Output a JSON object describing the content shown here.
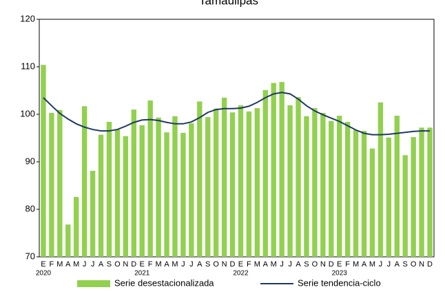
{
  "chart_data": {
    "type": "bar-line",
    "title": "Tamaulipas",
    "categories": [
      "E",
      "F",
      "M",
      "A",
      "M",
      "J",
      "J",
      "A",
      "S",
      "O",
      "N",
      "D",
      "E",
      "F",
      "M",
      "A",
      "M",
      "J",
      "J",
      "A",
      "S",
      "O",
      "N",
      "D",
      "E",
      "F",
      "M",
      "A",
      "M",
      "J",
      "J",
      "A",
      "S",
      "O",
      "N",
      "D",
      "E",
      "F",
      "M",
      "A",
      "M",
      "J",
      "J",
      "A",
      "S",
      "O",
      "N",
      "D"
    ],
    "years": [
      "2020",
      "2021",
      "2022",
      "2023"
    ],
    "series": [
      {
        "name": "Serie desestacionalizada",
        "type": "bar",
        "color": "#92d050",
        "values": [
          110.4,
          100.3,
          100.9,
          76.8,
          82.6,
          101.7,
          88.1,
          95.7,
          98.4,
          96.8,
          95.4,
          101.0,
          97.7,
          102.9,
          99.3,
          96.2,
          99.6,
          96.1,
          98.1,
          102.7,
          99.4,
          101.2,
          103.5,
          100.4,
          101.9,
          100.6,
          101.3,
          105.1,
          106.6,
          106.8,
          101.9,
          103.6,
          99.6,
          101.3,
          100.3,
          98.6,
          99.7,
          98.4,
          96.7,
          96.5,
          92.8,
          102.5,
          95.1,
          99.7,
          91.4,
          95.2,
          97.2,
          97.2
        ]
      },
      {
        "name": "Serie tendencia-ciclo",
        "type": "line",
        "color": "#1f3864",
        "values": [
          103.5,
          101.8,
          100.2,
          99.0,
          98.0,
          97.3,
          96.8,
          96.5,
          96.5,
          96.8,
          97.5,
          98.3,
          98.8,
          98.9,
          98.7,
          98.3,
          98.0,
          98.0,
          98.4,
          99.3,
          100.4,
          101.0,
          101.2,
          101.2,
          101.3,
          101.7,
          102.5,
          103.5,
          104.3,
          104.6,
          104.3,
          103.2,
          101.8,
          100.7,
          99.9,
          99.2,
          98.5,
          97.6,
          96.7,
          96.0,
          95.7,
          95.7,
          95.8,
          96.0,
          96.2,
          96.4,
          96.5,
          96.5
        ]
      }
    ],
    "ylim": [
      70,
      120
    ],
    "yticks": [
      70,
      80,
      90,
      100,
      110,
      120
    ],
    "grid": false,
    "legend": "bottom"
  }
}
